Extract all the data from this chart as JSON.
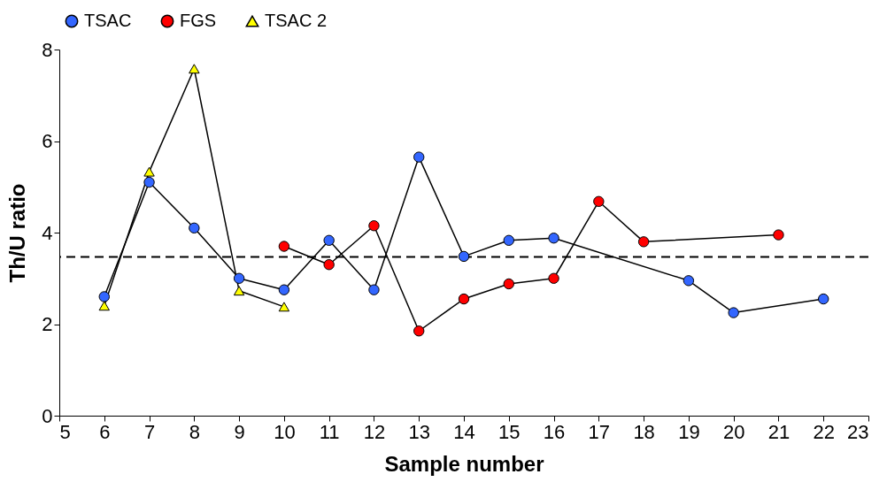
{
  "chart_data": {
    "type": "line",
    "xlabel": "Sample number",
    "ylabel": "Th/U ratio",
    "xlim": [
      5,
      23
    ],
    "xticks": [
      5,
      6,
      7,
      8,
      9,
      10,
      11,
      12,
      13,
      14,
      15,
      16,
      17,
      18,
      19,
      20,
      21,
      22,
      23
    ],
    "ylim": [
      0,
      8
    ],
    "yticks": [
      0,
      2,
      4,
      6,
      8
    ],
    "grid": false,
    "legend": "top",
    "series": [
      {
        "name": "TSAC",
        "color": "#3366ff",
        "marker": "circle",
        "x": [
          6,
          7,
          8,
          9,
          10,
          11,
          12,
          13,
          14,
          15,
          16,
          19,
          20,
          22
        ],
        "values": [
          2.6,
          5.1,
          4.1,
          3.0,
          2.75,
          3.83,
          2.75,
          5.65,
          3.48,
          3.83,
          3.88,
          2.95,
          2.25,
          2.55
        ]
      },
      {
        "name": "FGS",
        "color": "#ff0000",
        "marker": "circle",
        "x": [
          10,
          11,
          12,
          13,
          14,
          15,
          16,
          17,
          18,
          21
        ],
        "values": [
          3.7,
          3.3,
          4.15,
          1.85,
          2.55,
          2.88,
          3.0,
          4.68,
          3.8,
          3.95
        ]
      },
      {
        "name": "TSAC 2",
        "color": "#ffff00",
        "marker": "triangle",
        "x": [
          6,
          7,
          8,
          9,
          10
        ],
        "values": [
          2.4,
          5.33,
          7.58,
          2.73,
          2.38
        ]
      }
    ],
    "ref_lines": [
      {
        "axis": "y",
        "value": 3.47,
        "color": "#000000",
        "line_style": "dashed"
      }
    ]
  }
}
